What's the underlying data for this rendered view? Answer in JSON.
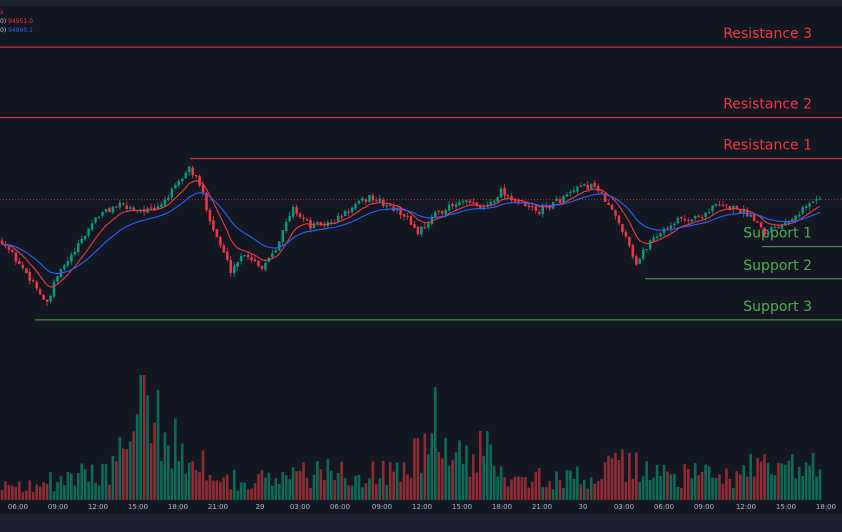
{
  "legend": {
    "line0_value": "x",
    "ema_fast": {
      "key": "0)",
      "value": "94951.0"
    },
    "ema_slow": {
      "key": "0)",
      "value": "94890.1"
    }
  },
  "colors": {
    "background": "#131722",
    "up_candle": "#089981",
    "down_candle": "#f23645",
    "resistance": "#f23645",
    "support": "#4caf50",
    "ema_fast": "#f23645",
    "ema_slow": "#2962ff",
    "up_volume": "#0c6b58",
    "down_volume": "#8e2c33"
  },
  "chart_data": {
    "type": "candlestick",
    "x_tick_labels": [
      "06:00",
      "09:00",
      "12:00",
      "15:00",
      "18:00",
      "21:00",
      "29",
      "03:00",
      "06:00",
      "09:00",
      "12:00",
      "15:00",
      "18:00",
      "21:00",
      "30",
      "03:00",
      "06:00",
      "09:00",
      "12:00",
      "15:00",
      "18:00"
    ],
    "levels": [
      {
        "name": "Resistance 3",
        "kind": "resistance",
        "price": 97600
      },
      {
        "name": "Resistance 2",
        "kind": "resistance",
        "price": 96400
      },
      {
        "name": "Resistance 1",
        "kind": "resistance",
        "price": 95700
      },
      {
        "name": "Support 1",
        "kind": "support",
        "price": 94200
      },
      {
        "name": "Support 2",
        "kind": "support",
        "price": 93650
      },
      {
        "name": "Support 3",
        "kind": "support",
        "price": 92950
      }
    ],
    "current_price": 95000,
    "price_range": [
      91500,
      98300
    ],
    "anchors": [
      [
        0,
        94300
      ],
      [
        5,
        93900
      ],
      [
        9,
        93600
      ],
      [
        13,
        93200
      ],
      [
        16,
        93700
      ],
      [
        22,
        94200
      ],
      [
        27,
        94700
      ],
      [
        33,
        94900
      ],
      [
        38,
        94850
      ],
      [
        44,
        94800
      ],
      [
        50,
        95200
      ],
      [
        54,
        95550
      ],
      [
        57,
        95250
      ],
      [
        61,
        94500
      ],
      [
        66,
        93800
      ],
      [
        70,
        94100
      ],
      [
        75,
        93850
      ],
      [
        79,
        94200
      ],
      [
        84,
        94850
      ],
      [
        89,
        94550
      ],
      [
        95,
        94600
      ],
      [
        101,
        94850
      ],
      [
        106,
        95050
      ],
      [
        111,
        94900
      ],
      [
        116,
        94750
      ],
      [
        120,
        94450
      ],
      [
        126,
        94800
      ],
      [
        133,
        94950
      ],
      [
        139,
        94850
      ],
      [
        144,
        95150
      ],
      [
        150,
        94900
      ],
      [
        155,
        94800
      ],
      [
        161,
        95000
      ],
      [
        167,
        95200
      ],
      [
        171,
        95250
      ],
      [
        176,
        94800
      ],
      [
        180,
        94400
      ],
      [
        183,
        93900
      ],
      [
        187,
        94300
      ],
      [
        191,
        94500
      ],
      [
        195,
        94650
      ],
      [
        201,
        94700
      ],
      [
        206,
        94900
      ],
      [
        212,
        94850
      ],
      [
        217,
        94700
      ],
      [
        220,
        94450
      ],
      [
        225,
        94600
      ],
      [
        230,
        94800
      ],
      [
        236,
        95050
      ]
    ],
    "volume_anchors": [
      [
        0,
        1.2
      ],
      [
        10,
        1.4
      ],
      [
        20,
        1.8
      ],
      [
        30,
        2.5
      ],
      [
        37,
        4.5
      ],
      [
        42,
        9.0
      ],
      [
        45,
        6.0
      ],
      [
        52,
        4.5
      ],
      [
        58,
        3.0
      ],
      [
        64,
        2.0
      ],
      [
        70,
        1.6
      ],
      [
        80,
        1.8
      ],
      [
        90,
        2.2
      ],
      [
        100,
        2.5
      ],
      [
        110,
        2.2
      ],
      [
        120,
        3.5
      ],
      [
        125,
        6.5
      ],
      [
        130,
        3.5
      ],
      [
        136,
        3.0
      ],
      [
        140,
        4.5
      ],
      [
        146,
        2.5
      ],
      [
        160,
        1.6
      ],
      [
        170,
        2.0
      ],
      [
        180,
        2.8
      ],
      [
        190,
        2.2
      ],
      [
        200,
        2.0
      ],
      [
        210,
        2.0
      ],
      [
        220,
        2.8
      ],
      [
        236,
        2.5
      ]
    ],
    "candle_count": 237,
    "seed": 42
  }
}
